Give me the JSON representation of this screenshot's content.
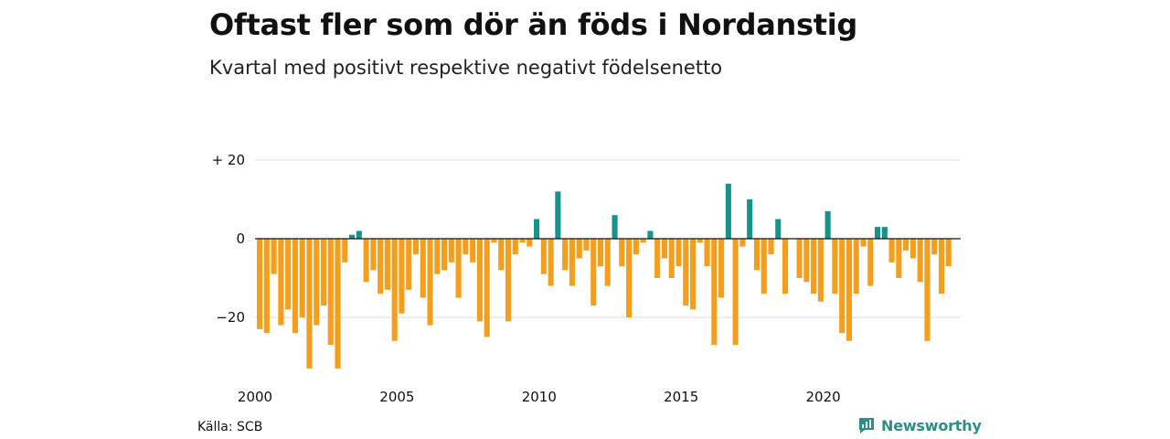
{
  "title": "Oftast fler som dör än föds i Nordanstig",
  "subtitle": "Kvartal med positivt respektive negativt födelsenetto",
  "source": "Källa: SCB",
  "brand": {
    "name": "Newsworthy",
    "icon": "newsworthy-logo-icon"
  },
  "colors": {
    "positive": "#17948a",
    "negative": "#f59e1b",
    "grid": "#dddddd",
    "zero": "#111111"
  },
  "chart_data": {
    "type": "bar",
    "title": "Oftast fler som dör än föds i Nordanstig",
    "subtitle": "Kvartal med positivt respektive negativt födelsenetto",
    "xlabel": "",
    "ylabel": "",
    "x_start": 2000,
    "periods_per_year": 4,
    "xticks": [
      2000,
      2005,
      2010,
      2015,
      2020
    ],
    "xtick_labels": [
      "2000",
      "2005",
      "2010",
      "2015",
      "2020"
    ],
    "yticks": [
      20,
      0,
      -20
    ],
    "ytick_labels": [
      "+ 20",
      "0",
      "−20"
    ],
    "ylim": [
      -33,
      20
    ],
    "grid": true,
    "values": [
      -23,
      -24,
      -9,
      -22,
      -18,
      -24,
      -20,
      -33,
      -22,
      -17,
      -27,
      -33,
      -6,
      1,
      2,
      -11,
      -8,
      -14,
      -13,
      -26,
      -19,
      -13,
      -4,
      -15,
      -22,
      -9,
      -8,
      -6,
      -15,
      -4,
      -6,
      -21,
      -25,
      -1,
      -8,
      -21,
      -4,
      -1,
      -2,
      5,
      -9,
      -12,
      12,
      -8,
      -12,
      -5,
      -3,
      -17,
      -7,
      -12,
      6,
      -7,
      -20,
      -4,
      -1,
      2,
      -10,
      -5,
      -10,
      -7,
      -17,
      -18,
      -1,
      -7,
      -27,
      -15,
      14,
      -27,
      -2,
      10,
      -8,
      -14,
      -4,
      5,
      -14,
      0,
      -10,
      -11,
      -14,
      -16,
      7,
      -14,
      -24,
      -26,
      -14,
      -2,
      -12,
      3,
      3,
      -6,
      -10,
      -3,
      -5,
      -11,
      -26,
      -4,
      -14,
      -7
    ]
  }
}
